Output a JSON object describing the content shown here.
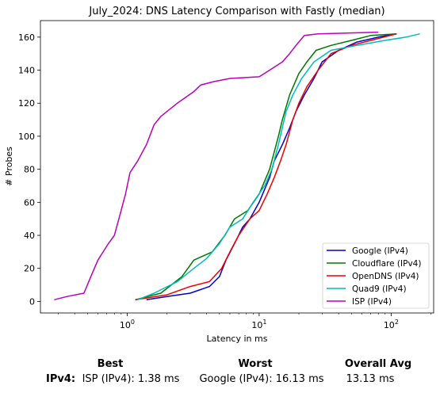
{
  "chart_data": {
    "type": "line",
    "title": "July_2024: DNS Latency Comparison with Fastly (median)",
    "xlabel": "Latency in ms",
    "ylabel": "# Probes",
    "xscale": "log",
    "xlim": [
      0.22,
      210
    ],
    "ylim": [
      -7,
      170
    ],
    "x_ticks": [
      {
        "value": 1,
        "label": "10^0"
      },
      {
        "value": 10,
        "label": "10^1"
      },
      {
        "value": 100,
        "label": "10^2"
      }
    ],
    "y_ticks": [
      0,
      20,
      40,
      60,
      80,
      100,
      120,
      140,
      160
    ],
    "grid": false,
    "legend_position": "lower-right",
    "series": [
      {
        "name": "Google (IPv4)",
        "color": "#0000cc",
        "points": [
          [
            1.4,
            1
          ],
          [
            2.0,
            3
          ],
          [
            3.0,
            5
          ],
          [
            4.2,
            9
          ],
          [
            5.0,
            15
          ],
          [
            5.6,
            25
          ],
          [
            6.5,
            35
          ],
          [
            7.5,
            45
          ],
          [
            8.5,
            50
          ],
          [
            10,
            60
          ],
          [
            12,
            75
          ],
          [
            13,
            85
          ],
          [
            15,
            95
          ],
          [
            17,
            105
          ],
          [
            19,
            115
          ],
          [
            22,
            125
          ],
          [
            26,
            135
          ],
          [
            30,
            145
          ],
          [
            40,
            152
          ],
          [
            55,
            157
          ],
          [
            80,
            160
          ],
          [
            110,
            162
          ]
        ]
      },
      {
        "name": "Cloudflare (IPv4)",
        "color": "#007700",
        "points": [
          [
            1.15,
            1
          ],
          [
            1.8,
            5
          ],
          [
            2.6,
            15
          ],
          [
            3.2,
            25
          ],
          [
            4.4,
            30
          ],
          [
            5.5,
            40
          ],
          [
            6.5,
            50
          ],
          [
            8.2,
            55
          ],
          [
            10,
            65
          ],
          [
            12,
            80
          ],
          [
            14,
            100
          ],
          [
            15,
            110
          ],
          [
            17,
            125
          ],
          [
            20,
            138
          ],
          [
            23,
            145
          ],
          [
            27,
            152
          ],
          [
            35,
            155
          ],
          [
            50,
            158
          ],
          [
            70,
            161
          ],
          [
            110,
            162
          ]
        ]
      },
      {
        "name": "OpenDNS (IPv4)",
        "color": "#ee0000",
        "points": [
          [
            1.15,
            1
          ],
          [
            2.0,
            4
          ],
          [
            3.0,
            9
          ],
          [
            4.2,
            12
          ],
          [
            5.2,
            20
          ],
          [
            6.0,
            30
          ],
          [
            7.0,
            40
          ],
          [
            8.5,
            50
          ],
          [
            10,
            55
          ],
          [
            11.5,
            65
          ],
          [
            13,
            75
          ],
          [
            14.5,
            85
          ],
          [
            16,
            95
          ],
          [
            18,
            110
          ],
          [
            20,
            120
          ],
          [
            23,
            130
          ],
          [
            28,
            140
          ],
          [
            35,
            150
          ],
          [
            50,
            155
          ],
          [
            70,
            158
          ],
          [
            110,
            162
          ]
        ]
      },
      {
        "name": "Quad9 (IPv4)",
        "color": "#00bbbb",
        "points": [
          [
            1.2,
            1
          ],
          [
            1.6,
            5
          ],
          [
            2.4,
            12
          ],
          [
            3.2,
            20
          ],
          [
            4.0,
            26
          ],
          [
            5.0,
            35
          ],
          [
            6.0,
            45
          ],
          [
            7.5,
            50
          ],
          [
            9.0,
            60
          ],
          [
            11,
            70
          ],
          [
            12.5,
            80
          ],
          [
            14,
            95
          ],
          [
            16,
            115
          ],
          [
            18,
            125
          ],
          [
            21,
            135
          ],
          [
            26,
            145
          ],
          [
            35,
            152
          ],
          [
            55,
            155
          ],
          [
            90,
            158
          ],
          [
            130,
            160
          ],
          [
            165,
            162
          ]
        ]
      },
      {
        "name": "ISP (IPv4)",
        "color": "#bb00bb",
        "points": [
          [
            0.28,
            1
          ],
          [
            0.35,
            3
          ],
          [
            0.47,
            5
          ],
          [
            0.53,
            15
          ],
          [
            0.6,
            25
          ],
          [
            0.72,
            35
          ],
          [
            0.8,
            40
          ],
          [
            0.9,
            55
          ],
          [
            0.97,
            65
          ],
          [
            1.05,
            78
          ],
          [
            1.2,
            85
          ],
          [
            1.4,
            95
          ],
          [
            1.6,
            107
          ],
          [
            1.8,
            112
          ],
          [
            2.0,
            115
          ],
          [
            2.4,
            120
          ],
          [
            3.2,
            127
          ],
          [
            3.6,
            131
          ],
          [
            4.5,
            133
          ],
          [
            6.0,
            135
          ],
          [
            10,
            136
          ],
          [
            12,
            140
          ],
          [
            15,
            145
          ],
          [
            17,
            150
          ],
          [
            19,
            155
          ],
          [
            22,
            161
          ],
          [
            28,
            162
          ],
          [
            80,
            163
          ]
        ]
      }
    ]
  },
  "summary": {
    "headers": {
      "best": "Best",
      "worst": "Worst",
      "overall": "Overall Avg"
    },
    "row_label": "IPv4:",
    "best": "ISP (IPv4): 1.38 ms",
    "worst": "Google (IPv4): 16.13 ms",
    "overall": "13.13 ms"
  }
}
